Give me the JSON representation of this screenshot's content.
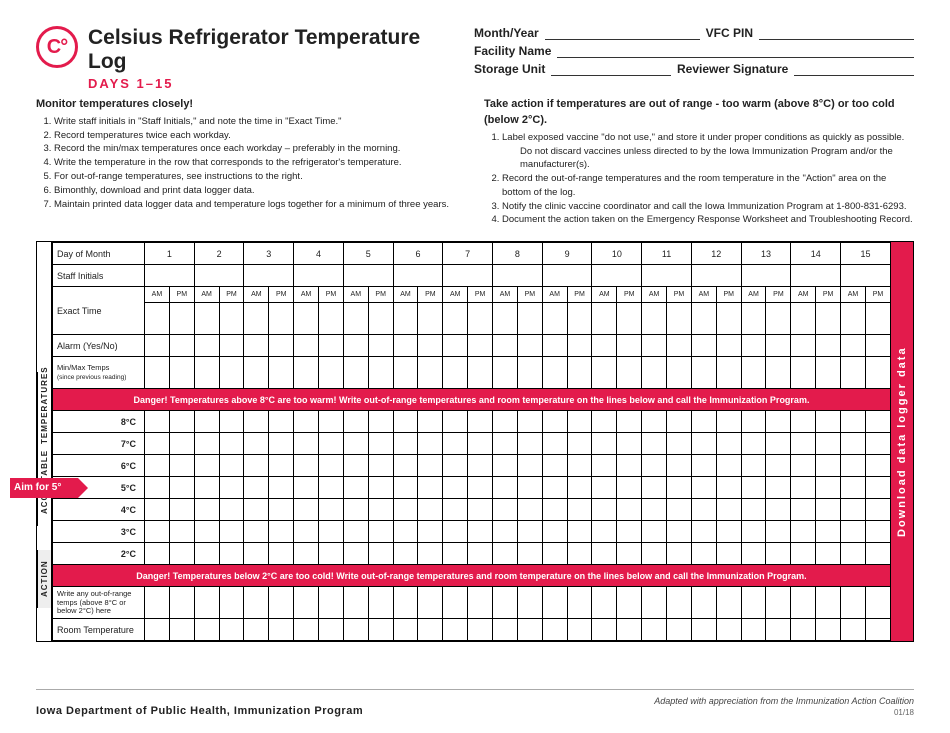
{
  "colors": {
    "accent": "#e31b4c",
    "text": "#222222",
    "border": "#000000",
    "background": "#ffffff"
  },
  "logo_text": "C°",
  "title": "Celsius Refrigerator Temperature Log",
  "subtitle": "DAYS 1–15",
  "header_fields": {
    "month_year": "Month/Year",
    "vfc_pin": "VFC PIN",
    "facility": "Facility Name",
    "storage": "Storage Unit",
    "reviewer": "Reviewer Signature"
  },
  "monitor": {
    "heading": "Monitor temperatures closely!",
    "items": [
      "Write staff initials in \"Staff Initials,\" and note the time in \"Exact Time.\"",
      "Record temperatures twice each workday.",
      "Record the min/max temperatures once each workday – preferably in the morning.",
      "Write the temperature in the row that corresponds to the refrigerator's temperature.",
      "For out-of-range temperatures, see instructions to the right.",
      "Bimonthly, download and print data logger data.",
      "Maintain printed data logger data and temperature logs together for a minimum of three years."
    ]
  },
  "action": {
    "heading": "Take action if temperatures are out of range - too warm (above 8°C) or too cold (below 2°C).",
    "items": [
      "Label exposed vaccine \"do not use,\" and store it under proper conditions as quickly as possible.",
      "Do not discard vaccines unless directed to by the Iowa Immunization Program and/or the manufacturer(s).",
      "Record the out-of-range temperatures and the room temperature in the \"Action\" area on the bottom of the log.",
      "Notify the clinic vaccine coordinator and call the Iowa Immunization Program at 1-800-831-6293.",
      "Document the action taken on the Emergency Response Worksheet and Troubleshooting Record."
    ]
  },
  "grid": {
    "row_labels": {
      "day_of_month": "Day of Month",
      "staff_initials": "Staff Initials",
      "exact_time": "Exact Time",
      "alarm": "Alarm (Yes/No)",
      "minmax": "Min/Max Temps",
      "minmax_sub": "(since previous reading)",
      "action_write": "Write any out-of-range temps (above 8°C or below 2°C) here",
      "room_temp": "Room Temperature"
    },
    "days": [
      "1",
      "2",
      "3",
      "4",
      "5",
      "6",
      "7",
      "8",
      "9",
      "10",
      "11",
      "12",
      "13",
      "14",
      "15"
    ],
    "am": "AM",
    "pm": "PM",
    "danger_warm": "Danger! Temperatures above 8°C are too warm!  Write out-of-range temperatures and room temperature on the lines below and call the Immunization Program.",
    "danger_cold": "Danger! Temperatures below 2°C are too cold!  Write out-of-range temperatures and room temperature on the lines below and call the Immunization Program.",
    "temps": [
      "8°C",
      "7°C",
      "6°C",
      "5°C",
      "4°C",
      "3°C",
      "2°C"
    ],
    "aim_label": "Aim for 5°",
    "side_temperatures": "Temperatures",
    "side_acceptable": "Acceptable",
    "side_action": "Action",
    "right_tab": "Download data logger data"
  },
  "footer": {
    "dept": "Iowa Department of Public Health, Immunization Program",
    "credit": "Adapted with appreciation from the Immunization Action Coalition",
    "date": "01/18"
  }
}
